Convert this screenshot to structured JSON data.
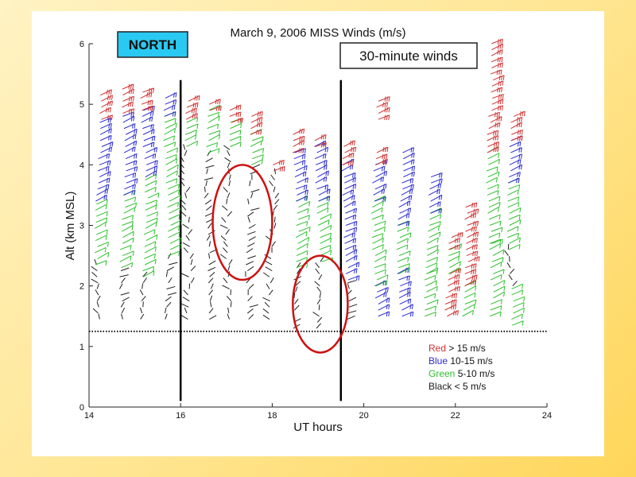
{
  "chart_data": {
    "type": "scatter",
    "title": "March 9, 2006     MISS Winds (m/s)",
    "xlabel": "UT hours",
    "ylabel": "Alt (km MSL)",
    "xlim": [
      14,
      24
    ],
    "ylim": [
      0,
      6
    ],
    "x_ticks": [
      "14",
      "16",
      "18",
      "20",
      "22",
      "24"
    ],
    "y_ticks": [
      "0",
      "1",
      "2",
      "3",
      "4",
      "5",
      "6"
    ],
    "grid": false,
    "baseline_alt_km": 1.25,
    "vertical_markers_ut": [
      16.0,
      19.5
    ],
    "region_label": "NORTH",
    "interval_label": "30-minute winds",
    "legend": {
      "placement": "bottom-right",
      "items": [
        {
          "color_word": "Red",
          "desc": " > 15 m/s",
          "color": "#d03030"
        },
        {
          "color_word": "Blue",
          "desc": " 10-15 m/s",
          "color": "#2b2bd0"
        },
        {
          "color_word": "Green",
          "desc": " 5-10 m/s",
          "color": "#2ec02e"
        },
        {
          "color_word": "Black",
          "desc": " < 5 m/s",
          "color": "#202020"
        }
      ]
    },
    "highlight_ellipses": [
      {
        "x_center": 17.35,
        "y_center": 3.05,
        "x_halfwidth": 0.65,
        "y_halfwidth": 0.95,
        "color": "#cc1111"
      },
      {
        "x_center": 19.05,
        "y_center": 1.7,
        "x_halfwidth": 0.6,
        "y_halfwidth": 0.8,
        "color": "#cc1111"
      }
    ],
    "profiles": [
      {
        "ut": 14.2,
        "segments": [
          {
            "from": 1.45,
            "to": 2.35,
            "speed": "black"
          },
          {
            "from": 2.35,
            "to": 3.4,
            "speed": "green"
          },
          {
            "from": 3.4,
            "to": 4.75,
            "speed": "blue"
          },
          {
            "from": 4.75,
            "to": 5.15,
            "speed": "red"
          }
        ]
      },
      {
        "ut": 14.75,
        "segments": [
          {
            "from": 1.45,
            "to": 2.3,
            "speed": "black"
          },
          {
            "from": 2.3,
            "to": 3.5,
            "speed": "green"
          },
          {
            "from": 3.5,
            "to": 4.85,
            "speed": "blue"
          },
          {
            "from": 4.85,
            "to": 5.3,
            "speed": "red"
          }
        ]
      },
      {
        "ut": 15.2,
        "segments": [
          {
            "from": 1.45,
            "to": 2.15,
            "speed": "black"
          },
          {
            "from": 2.15,
            "to": 3.8,
            "speed": "green"
          },
          {
            "from": 3.8,
            "to": 4.9,
            "speed": "blue"
          },
          {
            "from": 4.9,
            "to": 5.25,
            "speed": "red"
          }
        ]
      },
      {
        "ut": 15.7,
        "segments": [
          {
            "from": 1.45,
            "to": 2.5,
            "speed": "black"
          },
          {
            "from": 2.5,
            "to": 4.8,
            "speed": "green"
          },
          {
            "from": 4.8,
            "to": 5.1,
            "speed": "blue"
          }
        ]
      },
      {
        "ut": 16.15,
        "segments": [
          {
            "from": 1.45,
            "to": 4.3,
            "speed": "black"
          },
          {
            "from": 4.3,
            "to": 4.75,
            "speed": "green"
          },
          {
            "from": 4.75,
            "to": 5.1,
            "speed": "red"
          }
        ]
      },
      {
        "ut": 16.6,
        "segments": [
          {
            "from": 1.45,
            "to": 4.2,
            "speed": "black"
          },
          {
            "from": 4.2,
            "to": 4.9,
            "speed": "green"
          },
          {
            "from": 4.9,
            "to": 5.0,
            "speed": "red"
          }
        ]
      },
      {
        "ut": 17.05,
        "segments": [
          {
            "from": 1.45,
            "to": 4.3,
            "speed": "black"
          },
          {
            "from": 4.3,
            "to": 4.7,
            "speed": "green"
          },
          {
            "from": 4.7,
            "to": 4.9,
            "speed": "red"
          }
        ]
      },
      {
        "ut": 17.5,
        "segments": [
          {
            "from": 1.45,
            "to": 4.0,
            "speed": "black"
          },
          {
            "from": 4.0,
            "to": 4.5,
            "speed": "green"
          },
          {
            "from": 4.5,
            "to": 4.8,
            "speed": "red"
          }
        ]
      },
      {
        "ut": 18.0,
        "segments": [
          {
            "from": 1.45,
            "to": 3.9,
            "speed": "black"
          },
          {
            "from": 3.9,
            "to": 4.0,
            "speed": "red"
          }
        ]
      },
      {
        "ut": 18.5,
        "segments": [
          {
            "from": 1.3,
            "to": 2.3,
            "speed": "black"
          },
          {
            "from": 2.3,
            "to": 3.4,
            "speed": "green"
          },
          {
            "from": 3.4,
            "to": 4.2,
            "speed": "blue"
          },
          {
            "from": 4.2,
            "to": 4.55,
            "speed": "red"
          }
        ]
      },
      {
        "ut": 19.0,
        "segments": [
          {
            "from": 1.3,
            "to": 2.4,
            "speed": "black"
          },
          {
            "from": 2.4,
            "to": 3.4,
            "speed": "green"
          },
          {
            "from": 3.4,
            "to": 4.3,
            "speed": "blue"
          },
          {
            "from": 4.3,
            "to": 4.4,
            "speed": "red"
          }
        ]
      },
      {
        "ut": 19.6,
        "segments": [
          {
            "from": 1.45,
            "to": 2.1,
            "speed": "black"
          },
          {
            "from": 2.1,
            "to": 4.0,
            "speed": "blue"
          },
          {
            "from": 4.0,
            "to": 4.35,
            "speed": "red"
          }
        ]
      },
      {
        "ut": 20.25,
        "segments": [
          {
            "from": 1.5,
            "to": 2.0,
            "speed": "blue"
          },
          {
            "from": 2.0,
            "to": 3.4,
            "speed": "green"
          },
          {
            "from": 3.4,
            "to": 4.0,
            "speed": "blue"
          },
          {
            "from": 4.0,
            "to": 4.2,
            "speed": "red"
          },
          {
            "from": 4.75,
            "to": 5.05,
            "speed": "red"
          }
        ]
      },
      {
        "ut": 20.8,
        "segments": [
          {
            "from": 1.5,
            "to": 2.2,
            "speed": "blue"
          },
          {
            "from": 2.2,
            "to": 3.0,
            "speed": "green"
          },
          {
            "from": 3.0,
            "to": 4.2,
            "speed": "blue"
          }
        ]
      },
      {
        "ut": 21.4,
        "segments": [
          {
            "from": 1.5,
            "to": 2.2,
            "speed": "green"
          },
          {
            "from": 2.2,
            "to": 3.2,
            "speed": "green"
          },
          {
            "from": 3.2,
            "to": 3.8,
            "speed": "blue"
          }
        ]
      },
      {
        "ut": 21.85,
        "segments": [
          {
            "from": 1.5,
            "to": 2.2,
            "speed": "red"
          },
          {
            "from": 2.2,
            "to": 2.6,
            "speed": "green"
          },
          {
            "from": 2.6,
            "to": 2.8,
            "speed": "red"
          }
        ]
      },
      {
        "ut": 22.2,
        "segments": [
          {
            "from": 1.5,
            "to": 2.0,
            "speed": "green"
          },
          {
            "from": 2.0,
            "to": 3.3,
            "speed": "red"
          }
        ]
      },
      {
        "ut": 22.75,
        "segments": [
          {
            "from": 1.5,
            "to": 2.7,
            "speed": "green"
          },
          {
            "from": 2.7,
            "to": 4.2,
            "speed": "green"
          },
          {
            "from": 4.2,
            "to": 6.0,
            "speed": "red"
          }
        ]
      },
      {
        "ut": 23.2,
        "segments": [
          {
            "from": 1.35,
            "to": 2.0,
            "speed": "green"
          },
          {
            "from": 2.0,
            "to": 2.6,
            "speed": "black"
          },
          {
            "from": 2.6,
            "to": 3.7,
            "speed": "green"
          },
          {
            "from": 3.7,
            "to": 4.4,
            "speed": "blue"
          },
          {
            "from": 4.4,
            "to": 4.8,
            "speed": "red"
          }
        ]
      }
    ]
  }
}
